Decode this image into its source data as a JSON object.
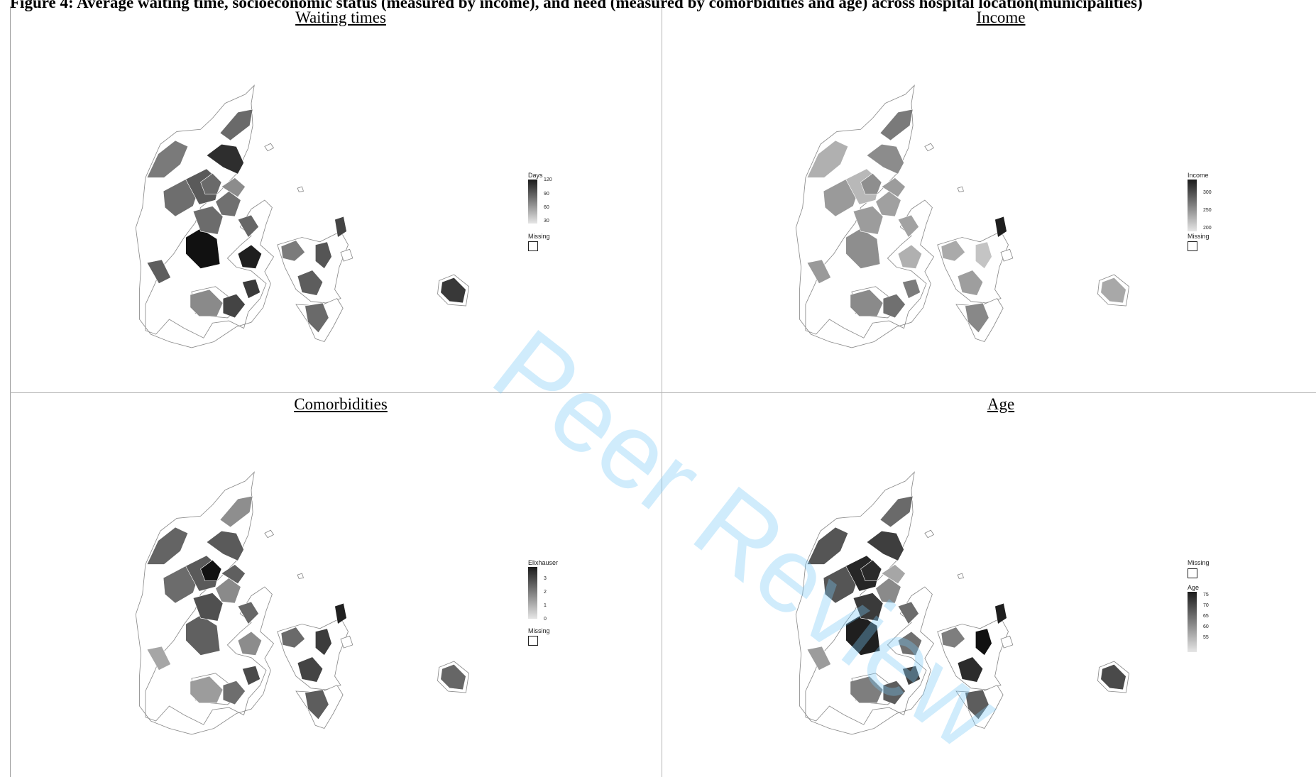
{
  "caption": "Figure 4: Average waiting time, socioeconomic status (measured by income), and need (measured by comorbidities and age) across hospital location(municipalities)",
  "watermark": "Peer Review",
  "panels": [
    {
      "title": "Waiting times",
      "legend": {
        "title": "Days",
        "ticks": [
          "120",
          "90",
          "60",
          "30"
        ],
        "missing_label": "Missing",
        "missing_position": "below"
      },
      "region_shades": [
        "#6a6a6a",
        "#2e2e2e",
        "#7a7a7a",
        "#6e6e6e",
        "#5a5a5a",
        "#111111",
        "#6c6c6c",
        "#8a8a8a",
        "#444444",
        "#1e1e1e",
        "#5e5e5e",
        "#707070",
        "#8c8c8c",
        "#6a6a6a",
        "#666666",
        "#3a3a3a",
        "#5d5d5d",
        "#7b7b7b",
        "#6a6a6a",
        "#555555",
        "#444444",
        "#383838"
      ]
    },
    {
      "title": "Income",
      "legend": {
        "title": "Income",
        "ticks": [
          "300",
          "250",
          "200"
        ],
        "missing_label": "Missing",
        "missing_position": "below"
      },
      "region_shades": [
        "#7a7a7a",
        "#8c8c8c",
        "#b0b0b0",
        "#9a9a9a",
        "#b8b8b8",
        "#8e8e8e",
        "#9c9c9c",
        "#8a8a8a",
        "#707070",
        "#b0b0b0",
        "#9a9a9a",
        "#a0a0a0",
        "#9c9c9c",
        "#8e8e8e",
        "#a2a2a2",
        "#7c7c7c",
        "#9e9e9e",
        "#aaaaaa",
        "#888888",
        "#c4c4c4",
        "#1e1e1e",
        "#a8a8a8"
      ]
    },
    {
      "title": "Comorbidities",
      "legend": {
        "title": "Elixhauser",
        "ticks": [
          "3",
          "2",
          "1",
          "0"
        ],
        "missing_label": "Missing",
        "missing_position": "below"
      },
      "region_shades": [
        "#8e8e8e",
        "#5a5a5a",
        "#646464",
        "#6c6c6c",
        "#5a5a5a",
        "#606060",
        "#505050",
        "#9c9c9c",
        "#6e6e6e",
        "#8c8c8c",
        "#a6a6a6",
        "#8a8a8a",
        "#5f5f5f",
        "#111111",
        "#676767",
        "#4a4a4a",
        "#444444",
        "#6a6a6a",
        "#5d5d5d",
        "#3c3c3c",
        "#202020",
        "#666666"
      ]
    },
    {
      "title": "Age",
      "legend": {
        "title": "Age",
        "ticks": [
          "75",
          "70",
          "65",
          "60",
          "55"
        ],
        "missing_label": "Missing",
        "missing_position": "above"
      },
      "region_shades": [
        "#6a6a6a",
        "#3e3e3e",
        "#555555",
        "#555555",
        "#262626",
        "#1f1f1f",
        "#3a3a3a",
        "#7e7e7e",
        "#5d5d5d",
        "#707070",
        "#9c9c9c",
        "#8a8a8a",
        "#a6a6a6",
        "#2a2a2a",
        "#6c6c6c",
        "#3f3f3f",
        "#2c2c2c",
        "#7e7e7e",
        "#5d5d5d",
        "#111111",
        "#1e1e1e",
        "#4a4a4a"
      ]
    }
  ]
}
